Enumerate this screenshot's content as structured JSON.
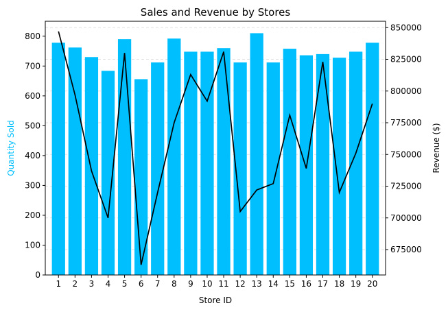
{
  "chart_data": {
    "type": "bar+line",
    "title": "Sales and Revenue by Stores",
    "xlabel": "Store ID",
    "ylabel_left": "Quantity Sold",
    "ylabel_right": "Revenue ($)",
    "categories": [
      "1",
      "2",
      "3",
      "4",
      "5",
      "6",
      "7",
      "8",
      "9",
      "10",
      "11",
      "12",
      "13",
      "14",
      "15",
      "16",
      "17",
      "18",
      "19",
      "20"
    ],
    "series": [
      {
        "axis": "left",
        "kind": "bar",
        "color": "#00bfff",
        "values": [
          778,
          762,
          730,
          684,
          790,
          656,
          712,
          792,
          748,
          748,
          760,
          712,
          810,
          712,
          758,
          736,
          740,
          728,
          748,
          778
        ]
      },
      {
        "axis": "right",
        "kind": "line",
        "color": "#000000",
        "values": [
          847000,
          797000,
          737000,
          700000,
          830000,
          663000,
          720000,
          775000,
          813000,
          792000,
          831000,
          705000,
          722000,
          727000,
          781000,
          739000,
          823000,
          720000,
          751000,
          790000
        ]
      }
    ],
    "ylim_left": [
      0,
      850
    ],
    "ylim_right": [
      655000,
      855000
    ],
    "yticks_left": [
      "0",
      "100",
      "200",
      "300",
      "400",
      "500",
      "600",
      "700",
      "800"
    ],
    "yticks_right": [
      "675000",
      "700000",
      "725000",
      "750000",
      "775000",
      "800000",
      "825000",
      "850000"
    ],
    "grid": "horizontal-dashed",
    "colors": {
      "bar": "#00bfff",
      "line": "#000000",
      "ylabel_left": "#00bfff",
      "grid": "#d9d9d9"
    }
  }
}
